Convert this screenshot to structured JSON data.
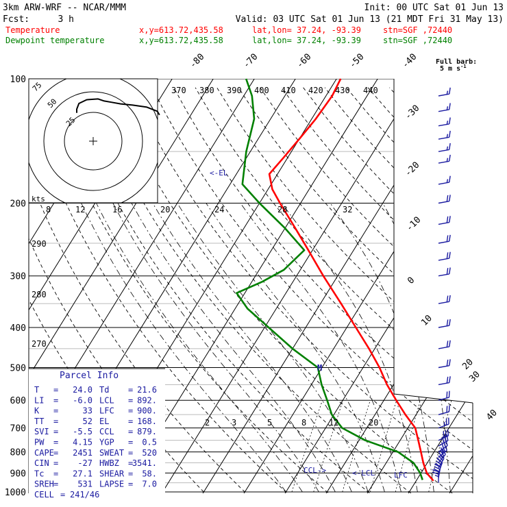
{
  "header": {
    "model": "3km ARW-WRF -- NCAR/MMM",
    "init": "Init: 00 UTC Sat 01 Jun 13",
    "fcst_label": "Fcst:",
    "fcst_value": "3 h",
    "valid": "Valid: 03 UTC Sat 01 Jun 13 (21 MDT Fri 31 May 13)",
    "temp_line": {
      "label": "Temperature",
      "xy": "x,y=613.72,435.58",
      "latlon": "lat,lon= 37.24, -93.39",
      "stn": "stn=SGF ,72440"
    },
    "dew_line": {
      "label": "Dewpoint temperature",
      "xy": "x,y=613.72,435.58",
      "latlon": "lat,lon= 37.24, -93.39",
      "stn": "stn=SGF ,72440"
    }
  },
  "colors": {
    "temperature": "#ff0000",
    "dewpoint": "#008000",
    "annotation": "#1a1aa0",
    "barb": "#1a1aa0",
    "grid": "#000000"
  },
  "wind_label": {
    "line1": "Full barb:",
    "line2": "5 m s",
    "sup": "-1"
  },
  "hodograph": {
    "unit": "kts",
    "ring_labels": [
      "75",
      "50",
      "25"
    ],
    "speed_ticks": [
      "8",
      "12",
      "16",
      "20",
      "24",
      "28",
      "32"
    ],
    "theta_labels": [
      "370",
      "380",
      "390",
      "400",
      "410",
      "420",
      "430",
      "440"
    ]
  },
  "parcel_info": {
    "title": "Parcel Info",
    "rows": [
      {
        "l1": "T",
        "v1": "24.0",
        "l2": "Td",
        "v2": "21.6"
      },
      {
        "l1": "LI",
        "v1": "-6.0",
        "l2": "LCL",
        "v2": "892."
      },
      {
        "l1": "K",
        "v1": "33",
        "l2": "LFC",
        "v2": "900."
      },
      {
        "l1": "TT",
        "v1": "52",
        "l2": "EL",
        "v2": "168."
      },
      {
        "l1": "SVI",
        "v1": "-5.5",
        "l2": "CCL",
        "v2": "879."
      },
      {
        "l1": "PW",
        "v1": "4.15",
        "l2": "YGP",
        "v2": "0.5"
      },
      {
        "l1": "CAPE",
        "v1": "2451",
        "l2": "SWEAT",
        "v2": "520"
      },
      {
        "l1": "CIN",
        "v1": "-27",
        "l2": "HWBZ",
        "v2": "3541."
      },
      {
        "l1": "Tc",
        "v1": "27.1",
        "l2": "SHEAR",
        "v2": "58."
      },
      {
        "l1": "SREH",
        "v1": "531",
        "l2": "LAPSE",
        "v2": "7.0"
      },
      {
        "l1": "CELL",
        "v1": "241/46",
        "l2": "",
        "v2": ""
      }
    ]
  },
  "labels": {
    "el": "<-EL",
    "ccl": "CCL->",
    "lcl": "<-LCL",
    "lfc": "LFC",
    "mixing_marker": "M"
  },
  "chart_data": {
    "type": "line",
    "title": "",
    "xlabel": "",
    "ylabel": "",
    "y_scale": "log-pressure",
    "ylim": [
      1000,
      100
    ],
    "pressure_ticks": [
      100,
      200,
      300,
      400,
      500,
      600,
      700,
      800,
      900,
      1000
    ],
    "isotherm_ticks": [
      "-80",
      "-70",
      "-60",
      "-50",
      "-40",
      "-30",
      "-20",
      "-10",
      "0",
      "10",
      "20",
      "30",
      "40"
    ],
    "theta_ticks": [
      "290",
      "280",
      "270"
    ],
    "mixing_ratio_ticks": [
      "2",
      "3",
      "5",
      "8",
      "12",
      "20"
    ],
    "series": [
      {
        "name": "Temperature",
        "points": [
          {
            "p": 940,
            "t": 24.2
          },
          {
            "p": 900,
            "t": 21.4
          },
          {
            "p": 850,
            "t": 19.0
          },
          {
            "p": 800,
            "t": 16.8
          },
          {
            "p": 750,
            "t": 14.4
          },
          {
            "p": 700,
            "t": 11.8
          },
          {
            "p": 650,
            "t": 7.4
          },
          {
            "p": 600,
            "t": 3.0
          },
          {
            "p": 550,
            "t": -1.6
          },
          {
            "p": 500,
            "t": -6.0
          },
          {
            "p": 450,
            "t": -11.4
          },
          {
            "p": 400,
            "t": -17.8
          },
          {
            "p": 350,
            "t": -25.0
          },
          {
            "p": 300,
            "t": -33.5
          },
          {
            "p": 260,
            "t": -41.0
          },
          {
            "p": 230,
            "t": -47.5
          },
          {
            "p": 200,
            "t": -55.0
          },
          {
            "p": 185,
            "t": -59.0
          },
          {
            "p": 170,
            "t": -62.0
          },
          {
            "p": 155,
            "t": -61.0
          },
          {
            "p": 140,
            "t": -60.0
          },
          {
            "p": 125,
            "t": -59.0
          },
          {
            "p": 110,
            "t": -58.5
          },
          {
            "p": 100,
            "t": -59.0
          }
        ]
      },
      {
        "name": "Dewpoint temperature",
        "points": [
          {
            "p": 935,
            "t": 21.4
          },
          {
            "p": 900,
            "t": 19.8
          },
          {
            "p": 850,
            "t": 16.6
          },
          {
            "p": 800,
            "t": 11.2
          },
          {
            "p": 750,
            "t": 1.5
          },
          {
            "p": 700,
            "t": -6.0
          },
          {
            "p": 650,
            "t": -10.5
          },
          {
            "p": 600,
            "t": -13.8
          },
          {
            "p": 550,
            "t": -17.5
          },
          {
            "p": 500,
            "t": -21.0
          },
          {
            "p": 450,
            "t": -30.0
          },
          {
            "p": 400,
            "t": -39.0
          },
          {
            "p": 360,
            "t": -47.0
          },
          {
            "p": 330,
            "t": -52.0
          },
          {
            "p": 310,
            "t": -47.5
          },
          {
            "p": 290,
            "t": -44.0
          },
          {
            "p": 260,
            "t": -42.0
          },
          {
            "p": 230,
            "t": -50.0
          },
          {
            "p": 200,
            "t": -60.0
          },
          {
            "p": 180,
            "t": -67.0
          },
          {
            "p": 150,
            "t": -71.0
          },
          {
            "p": 125,
            "t": -74.0
          },
          {
            "p": 110,
            "t": -78.0
          },
          {
            "p": 100,
            "t": -82.0
          }
        ]
      }
    ],
    "wind_profile": [
      {
        "p": 950,
        "dir": 180,
        "spd": 25
      },
      {
        "p": 925,
        "dir": 190,
        "spd": 30
      },
      {
        "p": 900,
        "dir": 200,
        "spd": 30
      },
      {
        "p": 875,
        "dir": 210,
        "spd": 30
      },
      {
        "p": 850,
        "dir": 220,
        "spd": 30
      },
      {
        "p": 825,
        "dir": 230,
        "spd": 30
      },
      {
        "p": 800,
        "dir": 235,
        "spd": 30
      },
      {
        "p": 775,
        "dir": 240,
        "spd": 30
      },
      {
        "p": 750,
        "dir": 245,
        "spd": 30
      },
      {
        "p": 700,
        "dir": 250,
        "spd": 25
      },
      {
        "p": 650,
        "dir": 255,
        "spd": 20
      },
      {
        "p": 600,
        "dir": 255,
        "spd": 20
      },
      {
        "p": 550,
        "dir": 260,
        "spd": 20
      },
      {
        "p": 500,
        "dir": 260,
        "spd": 20
      },
      {
        "p": 450,
        "dir": 260,
        "spd": 20
      },
      {
        "p": 400,
        "dir": 260,
        "spd": 20
      },
      {
        "p": 350,
        "dir": 260,
        "spd": 20
      },
      {
        "p": 300,
        "dir": 260,
        "spd": 20
      },
      {
        "p": 275,
        "dir": 260,
        "spd": 20
      },
      {
        "p": 250,
        "dir": 260,
        "spd": 20
      },
      {
        "p": 225,
        "dir": 260,
        "spd": 20
      },
      {
        "p": 200,
        "dir": 260,
        "spd": 20
      },
      {
        "p": 180,
        "dir": 260,
        "spd": 15
      },
      {
        "p": 160,
        "dir": 260,
        "spd": 15
      },
      {
        "p": 150,
        "dir": 260,
        "spd": 15
      },
      {
        "p": 140,
        "dir": 260,
        "spd": 15
      },
      {
        "p": 130,
        "dir": 260,
        "spd": 15
      },
      {
        "p": 120,
        "dir": 260,
        "spd": 15
      },
      {
        "p": 110,
        "dir": 260,
        "spd": 15
      }
    ],
    "hodograph_trace": [
      {
        "u": -3.0,
        "v": 0.2
      },
      {
        "u": -3.0,
        "v": 1.1
      },
      {
        "u": -2.6,
        "v": 2.5
      },
      {
        "u": -1.2,
        "v": 3.4
      },
      {
        "u": 0.9,
        "v": 3.6
      },
      {
        "u": 2.0,
        "v": 3.1
      },
      {
        "u": 3.3,
        "v": 2.8
      },
      {
        "u": 5.0,
        "v": 2.4
      },
      {
        "u": 7.2,
        "v": 2.1
      },
      {
        "u": 9.8,
        "v": 1.6
      },
      {
        "u": 11.7,
        "v": 0.6
      },
      {
        "u": 12.1,
        "v": -0.3
      }
    ]
  }
}
